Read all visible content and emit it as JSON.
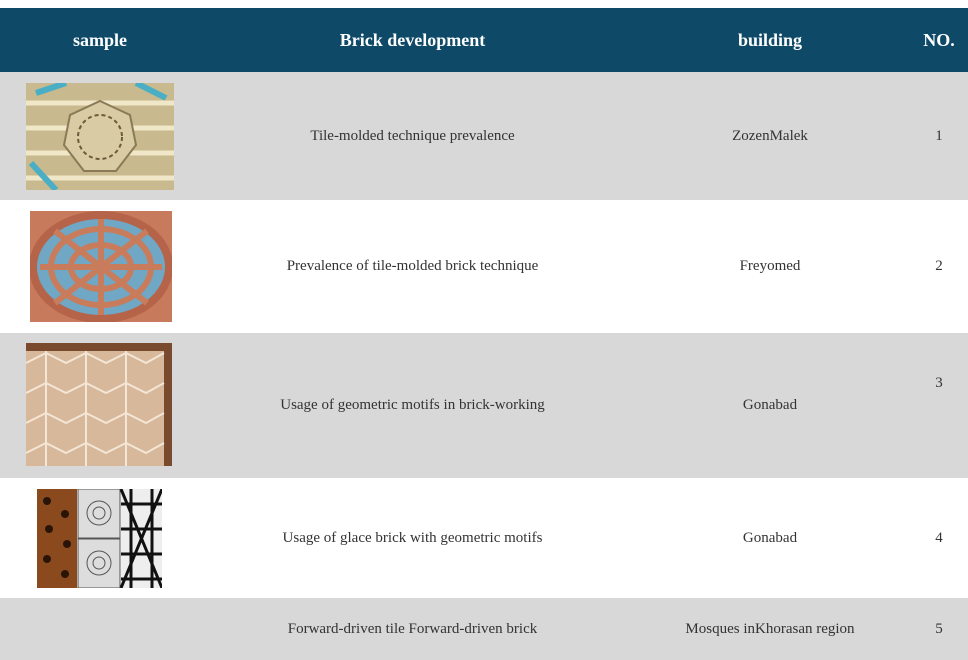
{
  "table": {
    "header": [
      "sample",
      "Brick development",
      "building",
      "NO."
    ],
    "rows": [
      [
        "Tile-molded technique prevalence",
        "ZozenMalek",
        1
      ],
      [
        "Prevalence of tile-molded brick technique",
        "Freyomed",
        2
      ],
      [
        "Usage of geometric motifs in brick-working",
        "Gonabad",
        3
      ],
      [
        "Usage of glace brick with geometric motifs",
        "Gonabad",
        4
      ],
      [
        "Forward-driven tile Forward-driven brick",
        "Mosques inKhorasan region",
        5
      ]
    ]
  }
}
